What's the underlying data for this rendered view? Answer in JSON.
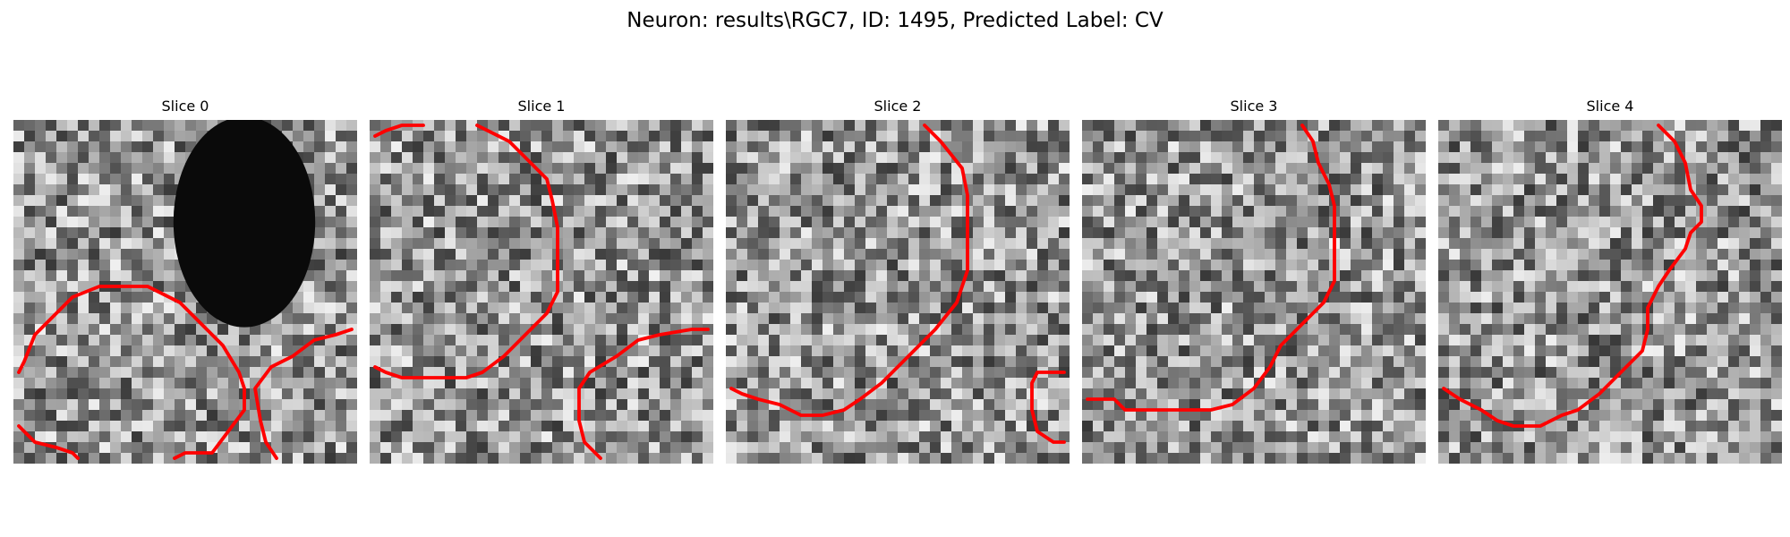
{
  "figure": {
    "title": "Neuron: results\\RGC7, ID: 1495, Predicted Label: CV"
  },
  "slices": [
    {
      "title": "Slice 0"
    },
    {
      "title": "Slice 1"
    },
    {
      "title": "Slice 2"
    },
    {
      "title": "Slice 3"
    },
    {
      "title": "Slice 4"
    }
  ],
  "contour_color": "#ff0000"
}
